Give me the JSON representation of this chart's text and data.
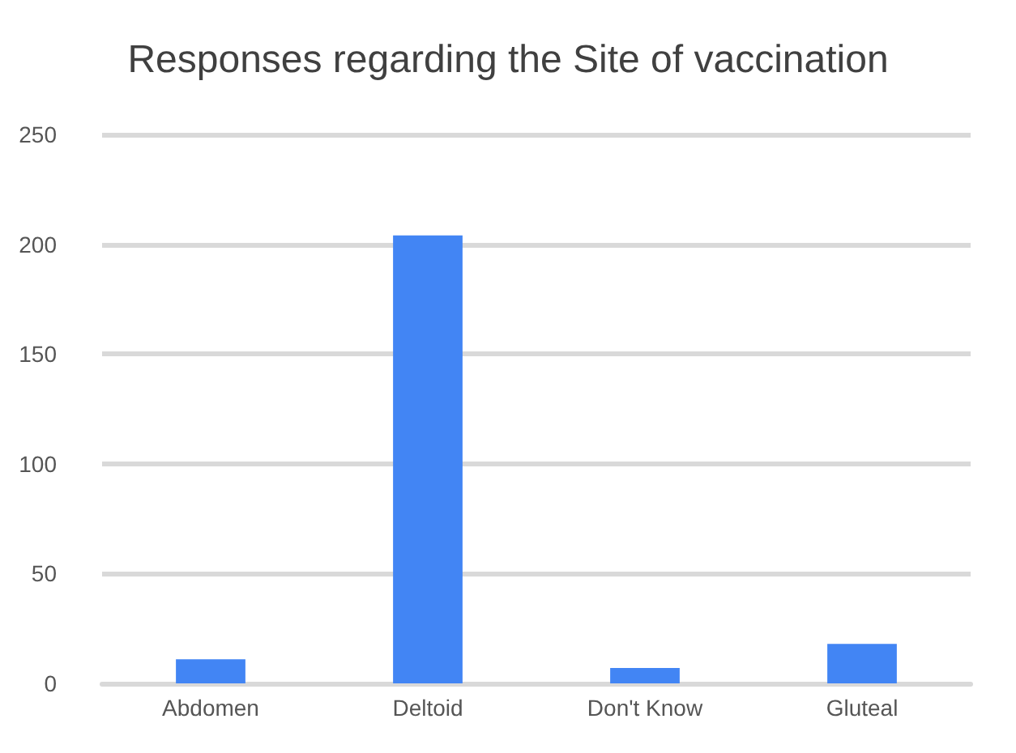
{
  "chart_data": {
    "type": "bar",
    "title": "Responses regarding the Site of vaccination",
    "categories": [
      "Abdomen",
      "Deltoid",
      "Don't Know",
      "Gluteal"
    ],
    "values": [
      11,
      204,
      7,
      18
    ],
    "color": "#4285f4",
    "ylim": [
      0,
      250
    ],
    "yticks": [
      0,
      50,
      100,
      150,
      200,
      250
    ],
    "grid": "y"
  }
}
